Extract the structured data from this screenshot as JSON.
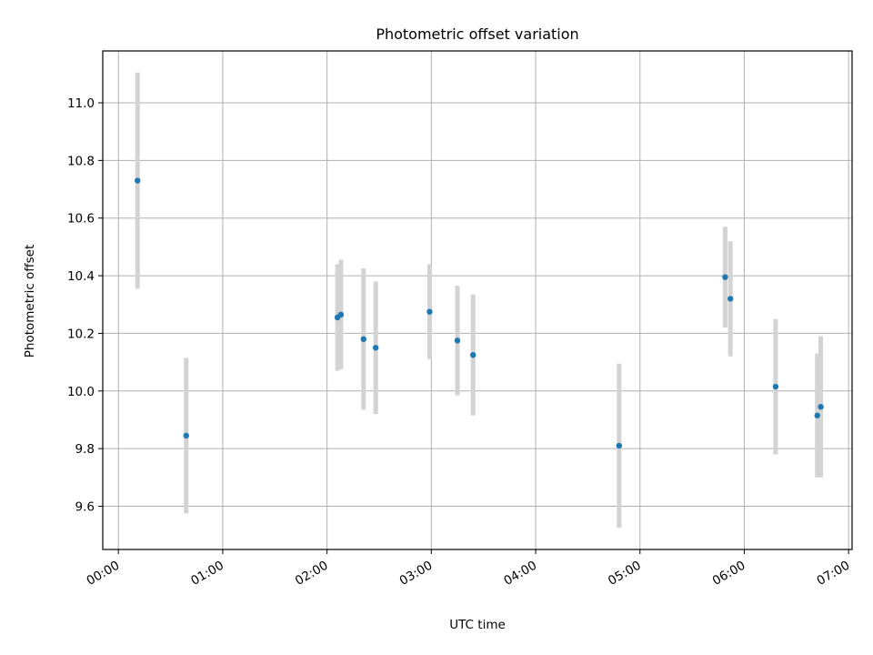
{
  "chart_data": {
    "type": "scatter",
    "title": "Photometric offset variation",
    "xlabel": "UTC time",
    "ylabel": "Photometric offset",
    "x_ticks": [
      "00:00",
      "01:00",
      "02:00",
      "03:00",
      "04:00",
      "05:00",
      "06:00",
      "07:00"
    ],
    "y_ticks": [
      "9.6",
      "9.8",
      "10.0",
      "10.2",
      "10.4",
      "10.6",
      "10.8",
      "11.0"
    ],
    "xlim": [
      "23:51",
      "07:02"
    ],
    "ylim": [
      9.45,
      11.18
    ],
    "grid": true,
    "marker_color": "#1f77b4",
    "errorbar_color": "#d3d3d3",
    "points": [
      {
        "x": "00:11",
        "y": 10.73,
        "err": 0.375
      },
      {
        "x": "00:39",
        "y": 9.845,
        "err": 0.27
      },
      {
        "x": "02:06",
        "y": 10.255,
        "err": 0.185
      },
      {
        "x": "02:08",
        "y": 10.265,
        "err": 0.19
      },
      {
        "x": "02:21",
        "y": 10.18,
        "err": 0.245
      },
      {
        "x": "02:28",
        "y": 10.15,
        "err": 0.23
      },
      {
        "x": "02:59",
        "y": 10.275,
        "err": 0.165
      },
      {
        "x": "03:15",
        "y": 10.175,
        "err": 0.19
      },
      {
        "x": "03:24",
        "y": 10.125,
        "err": 0.21
      },
      {
        "x": "04:48",
        "y": 9.81,
        "err": 0.285
      },
      {
        "x": "05:49",
        "y": 10.395,
        "err": 0.175
      },
      {
        "x": "05:52",
        "y": 10.32,
        "err": 0.2
      },
      {
        "x": "06:18",
        "y": 10.015,
        "err": 0.235
      },
      {
        "x": "06:42",
        "y": 9.915,
        "err": 0.215
      },
      {
        "x": "06:44",
        "y": 9.945,
        "err": 0.245
      }
    ]
  }
}
